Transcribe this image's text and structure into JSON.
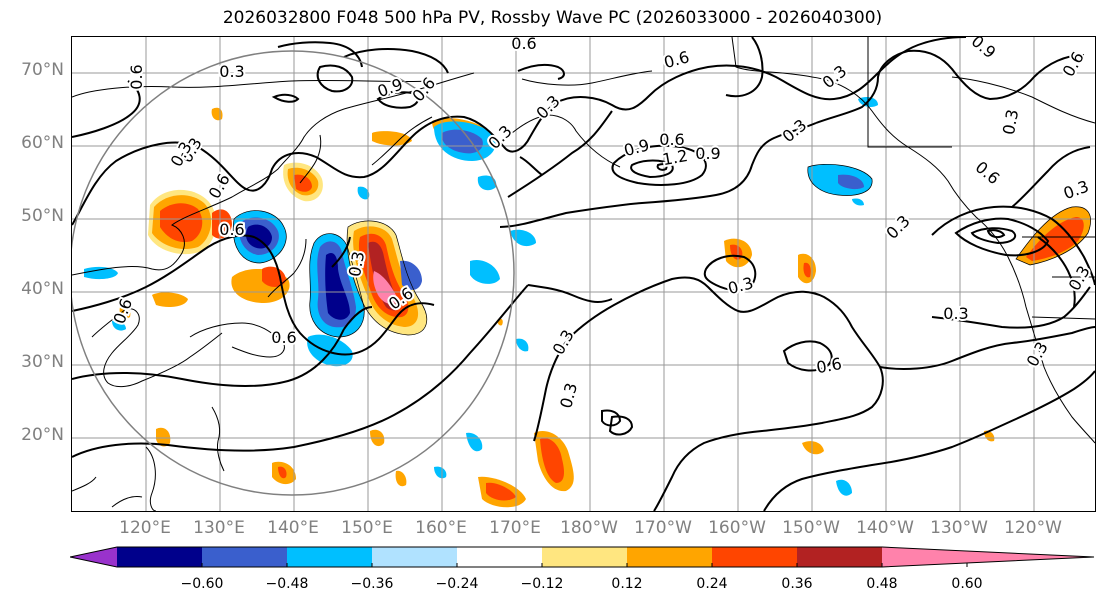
{
  "title": "2026032800 F048 500 hPa PV, Rossby Wave PC (2026033000 - 2026040300)",
  "lat_labels": [
    "70°N",
    "60°N",
    "50°N",
    "40°N",
    "30°N",
    "20°N"
  ],
  "lon_labels": [
    "120°E",
    "130°E",
    "140°E",
    "150°E",
    "160°E",
    "170°E",
    "180°W",
    "170°W",
    "160°W",
    "150°W",
    "140°W",
    "130°W",
    "120°W"
  ],
  "contour_labels": [
    "0.6",
    "0.3",
    "0.9",
    "0.6",
    "0.3",
    "0.3",
    "0.6",
    "0.3",
    "0.6",
    "0.3",
    "1.2",
    "0.9",
    "0.6",
    "0.6",
    "0.3",
    "0.6",
    "0.3",
    "0.9",
    "0.3",
    "0.6",
    "0.3",
    "0.3",
    "0.3",
    "0.6",
    "0.6",
    "0.6",
    "0.3",
    "0.3",
    "0.3",
    "0.6",
    "0.3",
    "0.3",
    "0.6",
    "0.3",
    "0.9"
  ],
  "colorbar": {
    "tick_labels": [
      "−0.60",
      "−0.48",
      "−0.36",
      "−0.24",
      "−0.12",
      "0.12",
      "0.24",
      "0.36",
      "0.48",
      "0.60"
    ],
    "colors": [
      "#9932cc",
      "#00008b",
      "#3a5fcd",
      "#00bfff",
      "#b0e2ff",
      "#ffffff",
      "#ffe680",
      "#ffa500",
      "#ff4500",
      "#b22222",
      "#ff82ab"
    ]
  },
  "palette": {
    "gridline": "#999999",
    "contour": "#000000",
    "coast": "#000000",
    "circle": "#808080",
    "axis_label": "#808080"
  }
}
